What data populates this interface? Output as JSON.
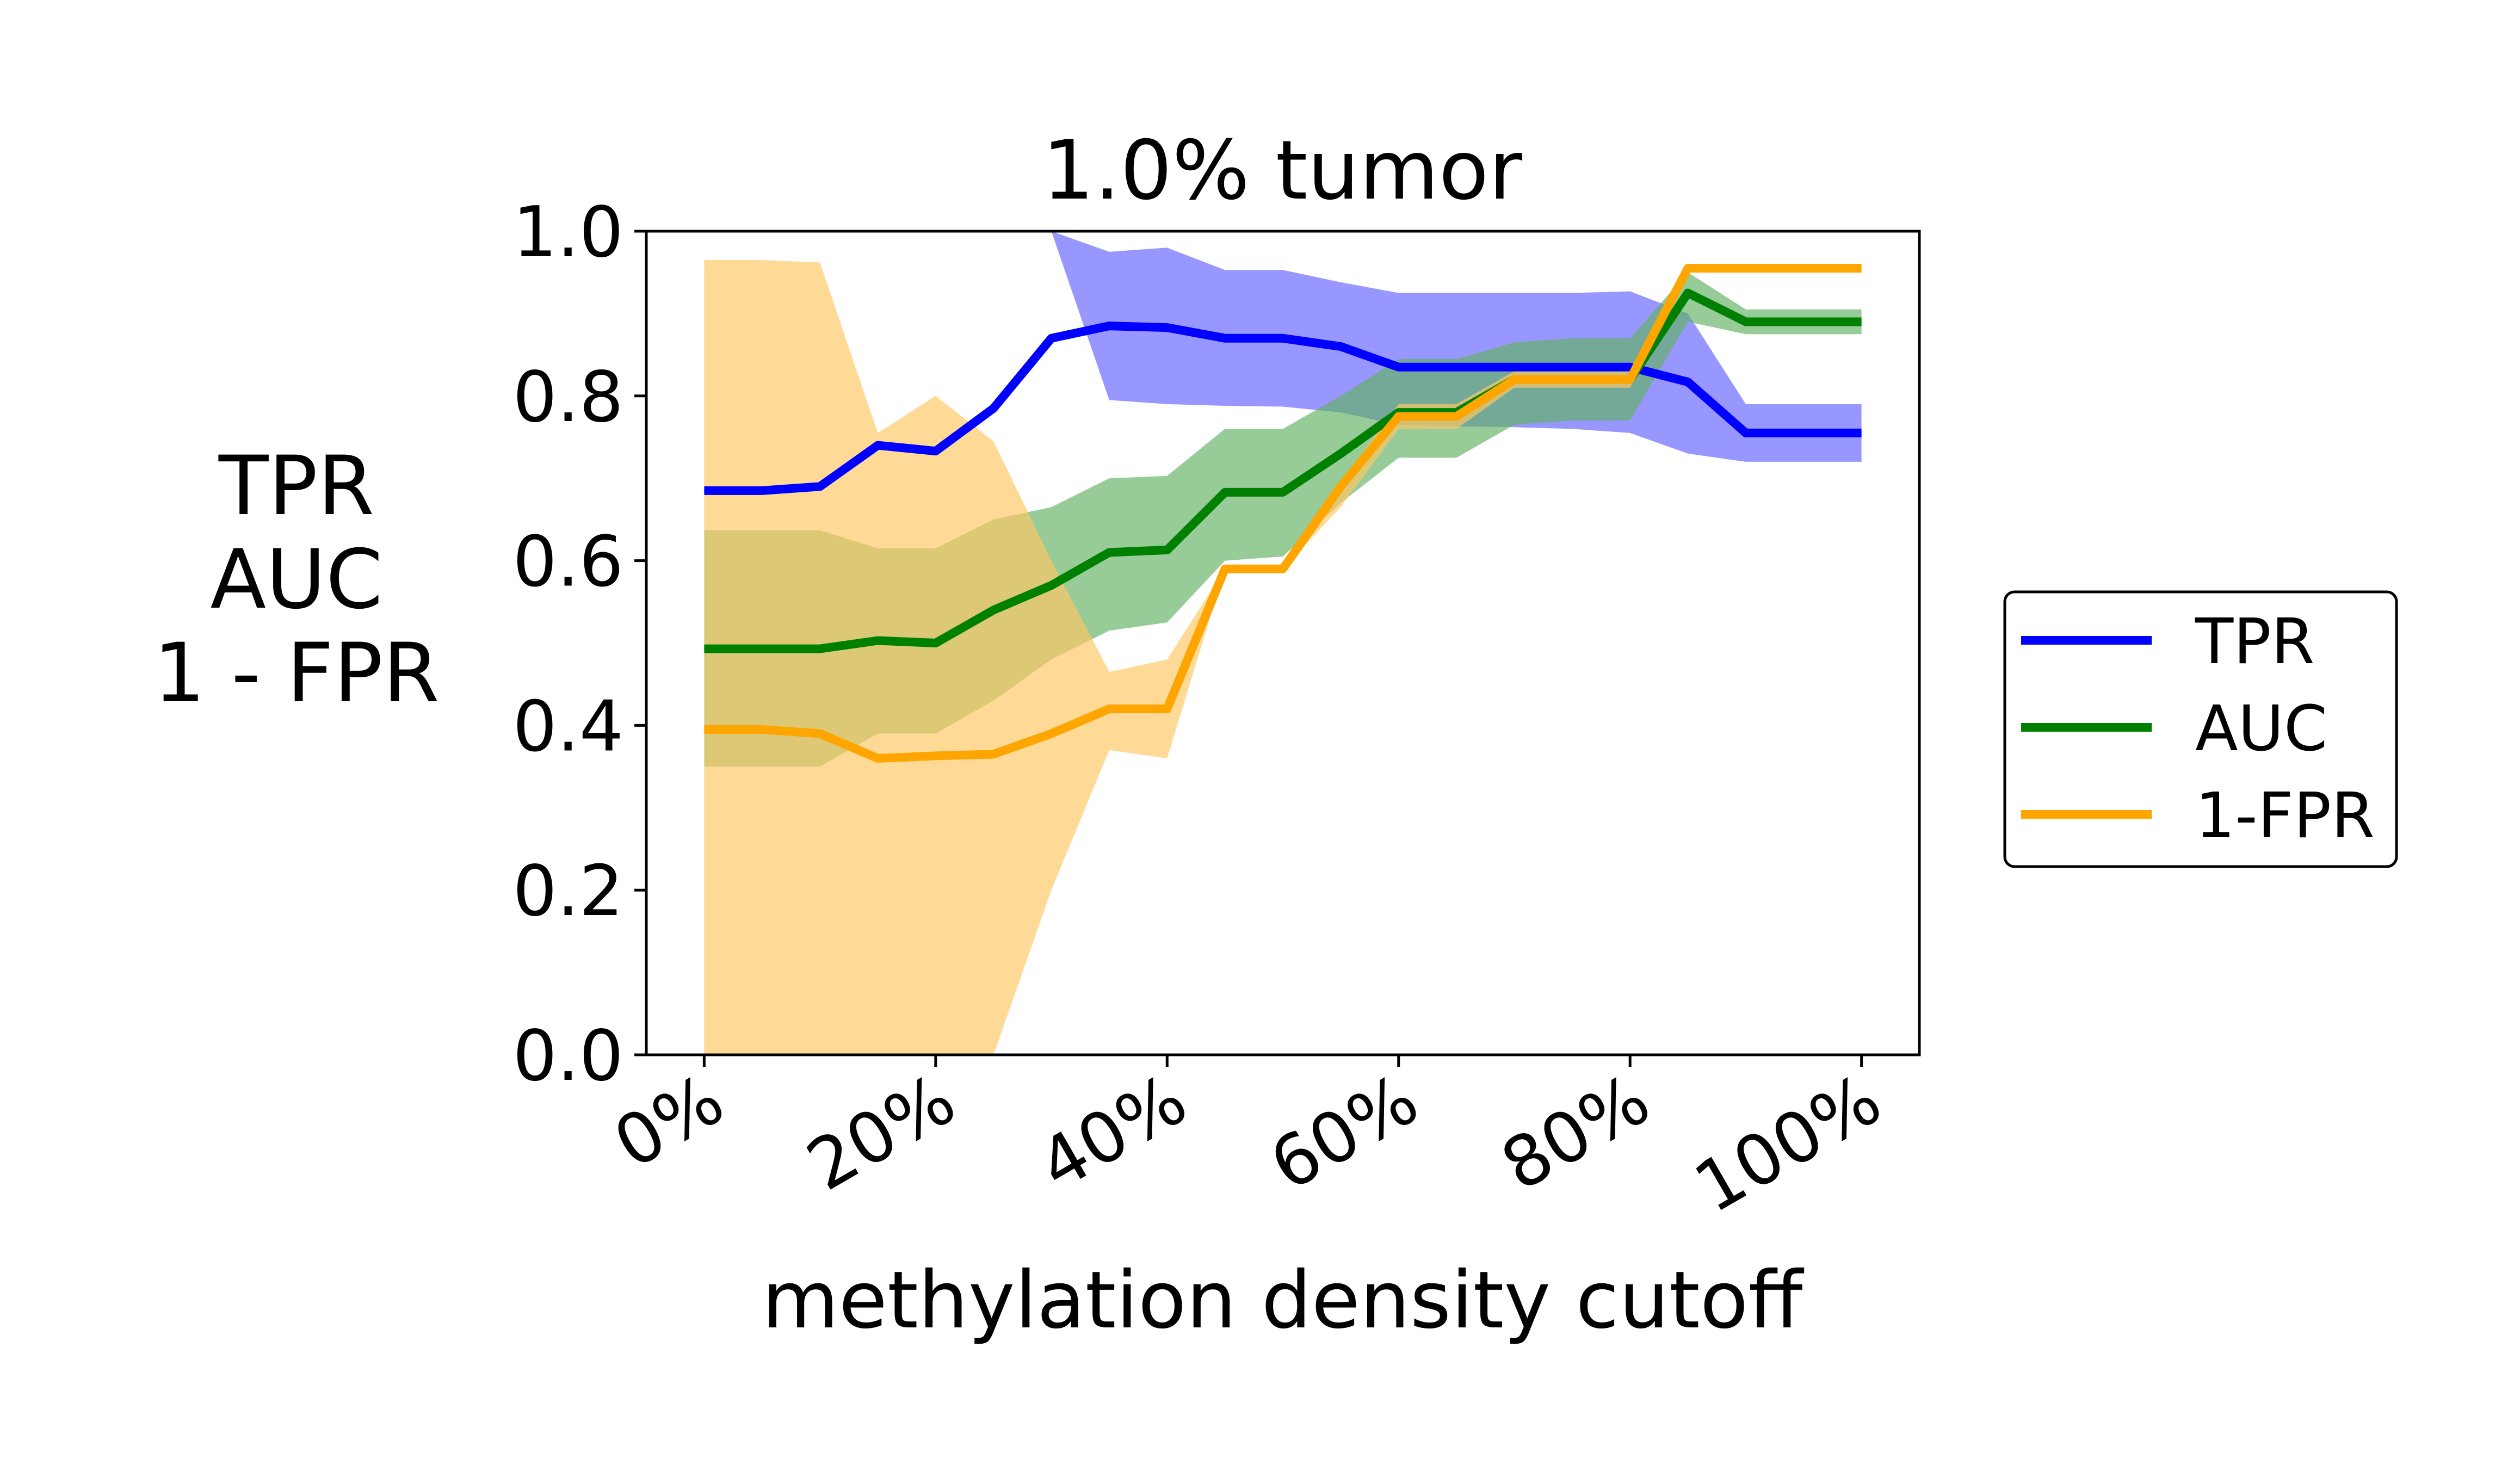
{
  "chart_data": {
    "type": "line",
    "title": "1.0% tumor",
    "xlabel": "methylation density cutoff",
    "ylabel_lines": [
      "TPR",
      "AUC",
      "1 - FPR"
    ],
    "xlim": [
      -0.05,
      1.05
    ],
    "ylim": [
      0,
      1
    ],
    "x_ticks": [
      0,
      0.2,
      0.4,
      0.6,
      0.8,
      1.0
    ],
    "x_tick_labels": [
      "0%",
      "20%",
      "40%",
      "60%",
      "80%",
      "100%"
    ],
    "y_ticks": [
      0,
      0.2,
      0.4,
      0.6,
      0.8,
      1.0
    ],
    "y_tick_labels": [
      "0.0",
      "0.2",
      "0.4",
      "0.6",
      "0.8",
      "1.0"
    ],
    "grid": false,
    "legend_position": "right, outside plot",
    "x": [
      0,
      0.05,
      0.1,
      0.15,
      0.2,
      0.25,
      0.3,
      0.35,
      0.4,
      0.45,
      0.5,
      0.55,
      0.6,
      0.65,
      0.7,
      0.75,
      0.8,
      0.85,
      0.9,
      0.95,
      1.0
    ],
    "series": [
      {
        "name": "TPR",
        "color": "#0000ff",
        "band_color": "#6666ff",
        "values": [
          0.685,
          0.685,
          0.69,
          0.74,
          0.733,
          0.785,
          0.87,
          0.885,
          0.883,
          0.87,
          0.87,
          0.86,
          0.835,
          0.835,
          0.835,
          0.835,
          0.835,
          0.817,
          0.755,
          0.755,
          0.755
        ],
        "lower": [
          1.0,
          1.0,
          1.0,
          1.0,
          1.0,
          1.0,
          1.0,
          0.795,
          0.79,
          0.788,
          0.787,
          0.78,
          0.765,
          0.763,
          0.762,
          0.76,
          0.755,
          0.73,
          0.72,
          0.72,
          0.72
        ],
        "upper": [
          1.0,
          1.0,
          1.0,
          1.0,
          1.0,
          1.0,
          1.0,
          0.975,
          0.98,
          0.953,
          0.953,
          0.938,
          0.925,
          0.925,
          0.925,
          0.925,
          0.927,
          0.9,
          0.79,
          0.79,
          0.79
        ]
      },
      {
        "name": "AUC",
        "color": "#008000",
        "band_color": "#66b366",
        "values": [
          0.493,
          0.493,
          0.493,
          0.503,
          0.5,
          0.54,
          0.57,
          0.61,
          0.613,
          0.683,
          0.683,
          0.73,
          0.78,
          0.78,
          0.82,
          0.82,
          0.82,
          0.925,
          0.89,
          0.89,
          0.89
        ],
        "lower": [
          0.35,
          0.35,
          0.35,
          0.39,
          0.39,
          0.43,
          0.48,
          0.515,
          0.525,
          0.6,
          0.605,
          0.67,
          0.725,
          0.725,
          0.765,
          0.77,
          0.77,
          0.89,
          0.875,
          0.875,
          0.875
        ],
        "upper": [
          0.637,
          0.637,
          0.637,
          0.615,
          0.615,
          0.65,
          0.665,
          0.7,
          0.703,
          0.76,
          0.76,
          0.8,
          0.845,
          0.845,
          0.865,
          0.87,
          0.87,
          0.95,
          0.905,
          0.905,
          0.905
        ]
      },
      {
        "name": "1-FPR",
        "color": "#ffa500",
        "band_color": "#ffc966",
        "values": [
          0.395,
          0.395,
          0.39,
          0.36,
          0.363,
          0.365,
          0.39,
          0.42,
          0.42,
          0.59,
          0.59,
          0.69,
          0.775,
          0.775,
          0.82,
          0.82,
          0.82,
          0.955,
          0.955,
          0.955,
          0.955
        ],
        "lower": [
          0.0,
          0.0,
          0.0,
          0.0,
          0.0,
          0.0,
          0.2,
          0.37,
          0.36,
          0.59,
          0.59,
          0.665,
          0.76,
          0.76,
          0.81,
          0.81,
          0.81,
          0.95,
          0.95,
          0.95,
          0.95
        ],
        "upper": [
          0.965,
          0.965,
          0.962,
          0.755,
          0.8,
          0.745,
          0.6,
          0.465,
          0.48,
          0.59,
          0.59,
          0.695,
          0.79,
          0.79,
          0.83,
          0.83,
          0.83,
          0.96,
          0.96,
          0.96,
          0.96
        ]
      }
    ]
  }
}
